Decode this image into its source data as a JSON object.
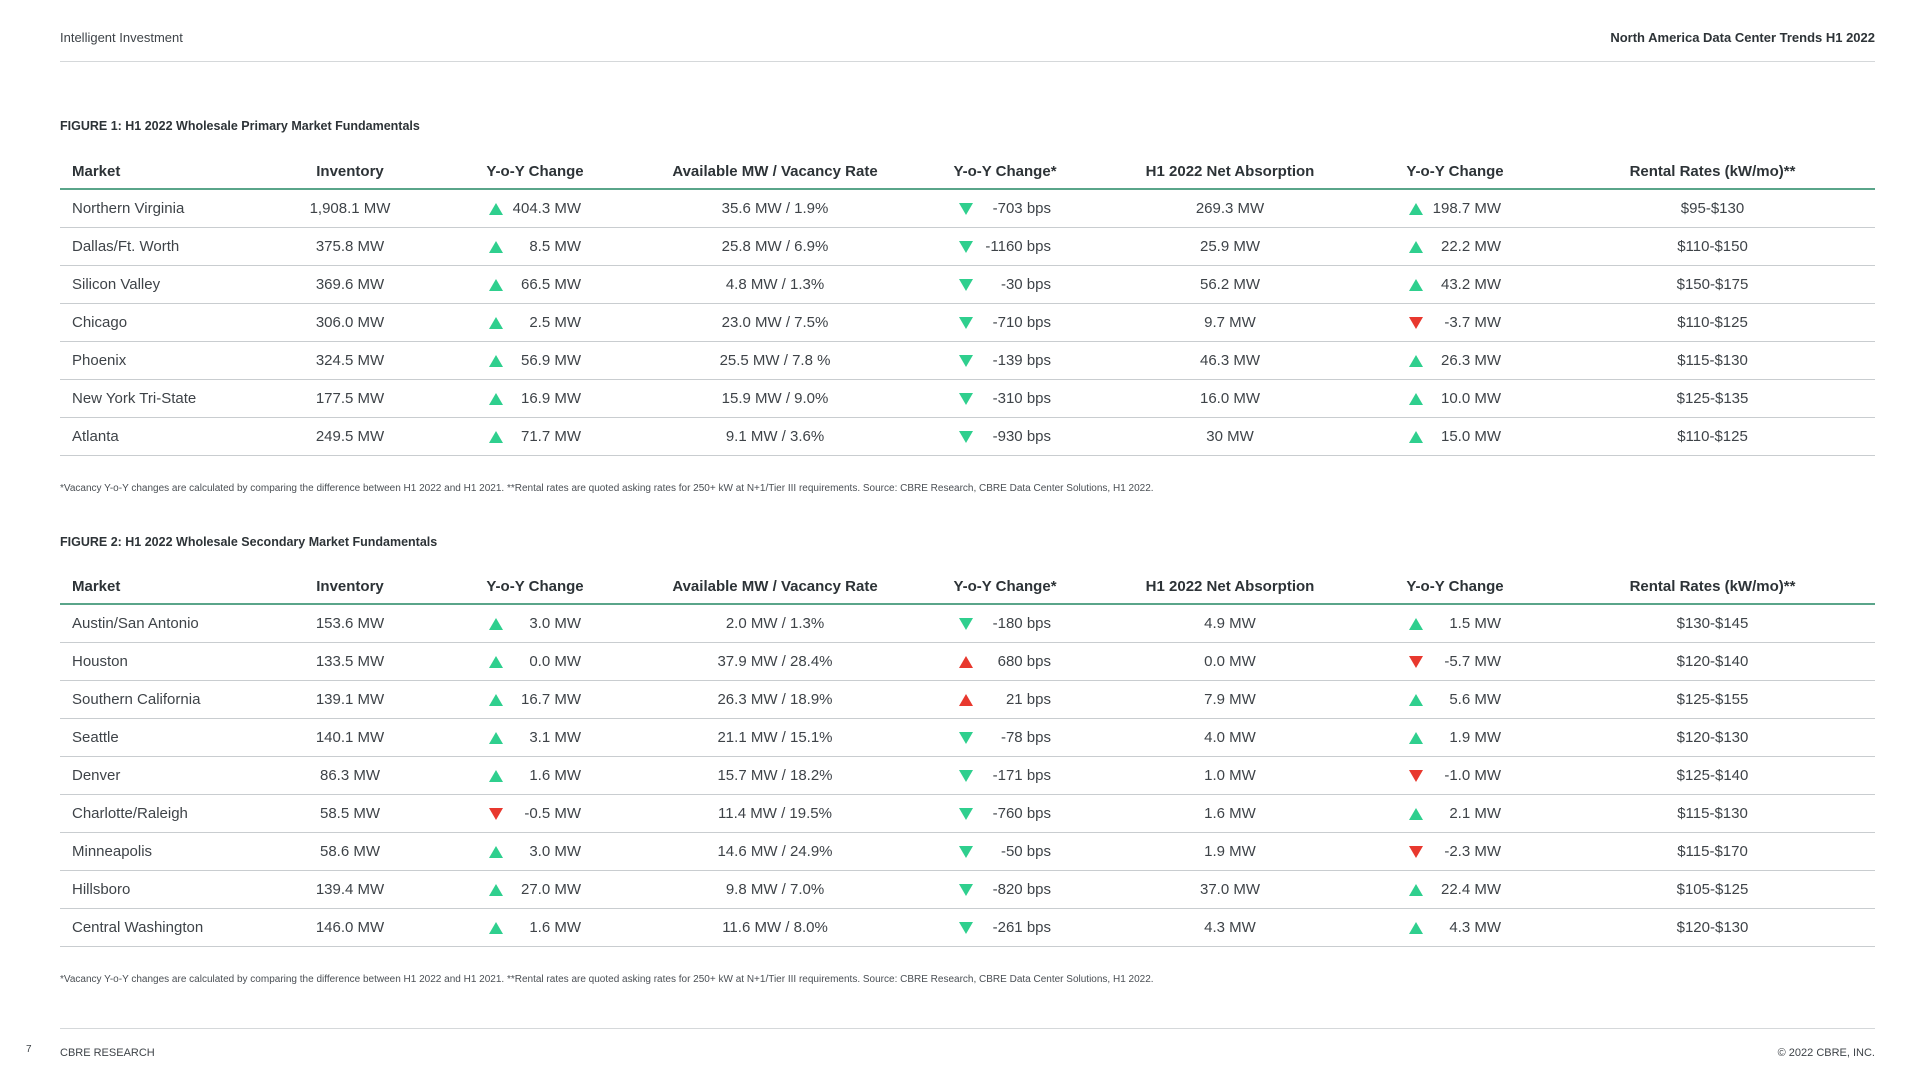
{
  "header": {
    "left": "Intelligent Investment",
    "right": "North America Data Center Trends H1 2022"
  },
  "figure1": {
    "title": "FIGURE 1: H1 2022 Wholesale Primary Market Fundamentals",
    "columns": [
      "Market",
      "Inventory",
      "Y-o-Y Change",
      "Available MW / Vacancy Rate",
      "Y-o-Y Change*",
      "H1 2022 Net Absorption",
      "Y-o-Y Change",
      "Rental Rates (kW/mo)**"
    ],
    "rows": [
      {
        "market": "Northern Virginia",
        "inventory": "1,908.1 MW",
        "inv_dir": "up-green",
        "inv_chg": "404.3 MW",
        "avail": "35.6 MW / 1.9%",
        "vac_dir": "down-green",
        "vac_chg": "-703 bps",
        "absorption": "269.3 MW",
        "abs_dir": "up-green",
        "abs_chg": "198.7 MW",
        "rent": "$95-$130"
      },
      {
        "market": "Dallas/Ft. Worth",
        "inventory": "375.8 MW",
        "inv_dir": "up-green",
        "inv_chg": "8.5 MW",
        "avail": "25.8 MW / 6.9%",
        "vac_dir": "down-green",
        "vac_chg": "-1160 bps",
        "absorption": "25.9 MW",
        "abs_dir": "up-green",
        "abs_chg": "22.2 MW",
        "rent": "$110-$150"
      },
      {
        "market": "Silicon Valley",
        "inventory": "369.6 MW",
        "inv_dir": "up-green",
        "inv_chg": "66.5 MW",
        "avail": "4.8 MW / 1.3%",
        "vac_dir": "down-green",
        "vac_chg": "-30 bps",
        "absorption": "56.2 MW",
        "abs_dir": "up-green",
        "abs_chg": "43.2 MW",
        "rent": "$150-$175"
      },
      {
        "market": "Chicago",
        "inventory": "306.0 MW",
        "inv_dir": "up-green",
        "inv_chg": "2.5 MW",
        "avail": "23.0 MW / 7.5%",
        "vac_dir": "down-green",
        "vac_chg": "-710 bps",
        "absorption": "9.7 MW",
        "abs_dir": "down-red",
        "abs_chg": "-3.7 MW",
        "rent": "$110-$125"
      },
      {
        "market": "Phoenix",
        "inventory": "324.5 MW",
        "inv_dir": "up-green",
        "inv_chg": "56.9 MW",
        "avail": "25.5 MW / 7.8 %",
        "vac_dir": "down-green",
        "vac_chg": "-139 bps",
        "absorption": "46.3 MW",
        "abs_dir": "up-green",
        "abs_chg": "26.3 MW",
        "rent": "$115-$130"
      },
      {
        "market": "New York Tri-State",
        "inventory": "177.5 MW",
        "inv_dir": "up-green",
        "inv_chg": "16.9 MW",
        "avail": "15.9 MW / 9.0%",
        "vac_dir": "down-green",
        "vac_chg": "-310 bps",
        "absorption": "16.0 MW",
        "abs_dir": "up-green",
        "abs_chg": "10.0 MW",
        "rent": "$125-$135"
      },
      {
        "market": "Atlanta",
        "inventory": "249.5 MW",
        "inv_dir": "up-green",
        "inv_chg": "71.7 MW",
        "avail": "9.1 MW / 3.6%",
        "vac_dir": "down-green",
        "vac_chg": "-930 bps",
        "absorption": "30 MW",
        "abs_dir": "up-green",
        "abs_chg": "15.0 MW",
        "rent": "$110-$125"
      }
    ],
    "footnote": "*Vacancy Y-o-Y changes are calculated by comparing the difference between H1 2022 and H1 2021. **Rental rates are quoted asking rates for 250+ kW at N+1/Tier III requirements. Source: CBRE Research, CBRE Data Center Solutions, H1 2022."
  },
  "figure2": {
    "title": "FIGURE 2: H1 2022 Wholesale Secondary Market Fundamentals",
    "columns": [
      "Market",
      "Inventory",
      "Y-o-Y Change",
      "Available MW / Vacancy Rate",
      "Y-o-Y Change*",
      "H1 2022 Net Absorption",
      "Y-o-Y Change",
      "Rental Rates (kW/mo)**"
    ],
    "rows": [
      {
        "market": "Austin/San Antonio",
        "inventory": "153.6 MW",
        "inv_dir": "up-green",
        "inv_chg": "3.0 MW",
        "avail": "2.0 MW / 1.3%",
        "vac_dir": "down-green",
        "vac_chg": "-180 bps",
        "absorption": "4.9 MW",
        "abs_dir": "up-green",
        "abs_chg": "1.5 MW",
        "rent": "$130-$145"
      },
      {
        "market": "Houston",
        "inventory": "133.5 MW",
        "inv_dir": "up-green",
        "inv_chg": "0.0 MW",
        "avail": "37.9 MW / 28.4%",
        "vac_dir": "up-red",
        "vac_chg": "680 bps",
        "absorption": "0.0 MW",
        "abs_dir": "down-red",
        "abs_chg": "-5.7 MW",
        "rent": "$120-$140"
      },
      {
        "market": "Southern California",
        "inventory": "139.1 MW",
        "inv_dir": "up-green",
        "inv_chg": "16.7 MW",
        "avail": "26.3 MW / 18.9%",
        "vac_dir": "up-red",
        "vac_chg": "21 bps",
        "absorption": "7.9 MW",
        "abs_dir": "up-green",
        "abs_chg": "5.6 MW",
        "rent": "$125-$155"
      },
      {
        "market": "Seattle",
        "inventory": "140.1 MW",
        "inv_dir": "up-green",
        "inv_chg": "3.1 MW",
        "avail": "21.1 MW / 15.1%",
        "vac_dir": "down-green",
        "vac_chg": "-78 bps",
        "absorption": "4.0 MW",
        "abs_dir": "up-green",
        "abs_chg": "1.9 MW",
        "rent": "$120-$130"
      },
      {
        "market": "Denver",
        "inventory": "86.3 MW",
        "inv_dir": "up-green",
        "inv_chg": "1.6 MW",
        "avail": "15.7 MW / 18.2%",
        "vac_dir": "down-green",
        "vac_chg": "-171 bps",
        "absorption": "1.0 MW",
        "abs_dir": "down-red",
        "abs_chg": "-1.0 MW",
        "rent": "$125-$140"
      },
      {
        "market": "Charlotte/Raleigh",
        "inventory": "58.5 MW",
        "inv_dir": "down-red",
        "inv_chg": "-0.5 MW",
        "avail": "11.4 MW / 19.5%",
        "vac_dir": "down-green",
        "vac_chg": "-760 bps",
        "absorption": "1.6 MW",
        "abs_dir": "up-green",
        "abs_chg": "2.1 MW",
        "rent": "$115-$130"
      },
      {
        "market": "Minneapolis",
        "inventory": "58.6 MW",
        "inv_dir": "up-green",
        "inv_chg": "3.0 MW",
        "avail": "14.6 MW / 24.9%",
        "vac_dir": "down-green",
        "vac_chg": "-50 bps",
        "absorption": "1.9 MW",
        "abs_dir": "down-red",
        "abs_chg": "-2.3 MW",
        "rent": "$115-$170"
      },
      {
        "market": "Hillsboro",
        "inventory": "139.4 MW",
        "inv_dir": "up-green",
        "inv_chg": "27.0 MW",
        "avail": "9.8 MW / 7.0%",
        "vac_dir": "down-green",
        "vac_chg": "-820 bps",
        "absorption": "37.0 MW",
        "abs_dir": "up-green",
        "abs_chg": "22.4 MW",
        "rent": "$105-$125"
      },
      {
        "market": "Central Washington",
        "inventory": "146.0 MW",
        "inv_dir": "up-green",
        "inv_chg": "1.6 MW",
        "avail": "11.6 MW / 8.0%",
        "vac_dir": "down-green",
        "vac_chg": "-261 bps",
        "absorption": "4.3 MW",
        "abs_dir": "up-green",
        "abs_chg": "4.3 MW",
        "rent": "$120-$130"
      }
    ],
    "footnote": "*Vacancy Y-o-Y changes are calculated by comparing the difference between H1 2022 and H1 2021. **Rental rates are quoted asking rates for 250+ kW at N+1/Tier III requirements. Source: CBRE Research, CBRE Data Center Solutions, H1 2022."
  },
  "footer": {
    "page_number": "7",
    "left": "CBRE RESEARCH",
    "right": "© 2022 CBRE, INC."
  },
  "colors": {
    "up_green": "#2fcf8e",
    "down_red": "#e8382e",
    "header_rule": "#5aa58a"
  },
  "icons": {
    "up-green": "triangle-up-green-icon",
    "down-green": "triangle-down-green-icon",
    "down-red": "triangle-down-red-icon",
    "up-red": "triangle-up-red-icon"
  }
}
